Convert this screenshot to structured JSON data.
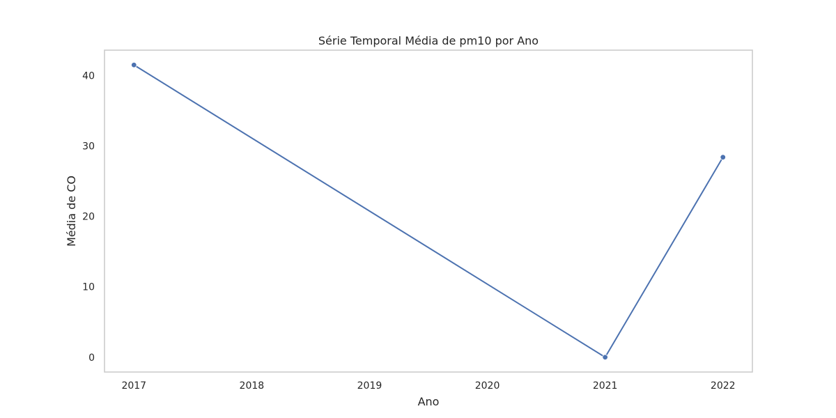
{
  "chart_data": {
    "type": "line",
    "title": "Série Temporal Média de pm10 por Ano",
    "xlabel": "Ano",
    "ylabel": "Média de CO",
    "x": [
      2017,
      2021,
      2022
    ],
    "x_ticks": [
      "2017",
      "2018",
      "2019",
      "2020",
      "2021",
      "2022"
    ],
    "xlim": [
      2016.75,
      2022.25
    ],
    "y_ticks": [
      0,
      10,
      20,
      30,
      40
    ],
    "ylim": [
      -2.1,
      43.6
    ],
    "series": [
      {
        "values": [
          41.5,
          0.0,
          28.4
        ],
        "color": "#4c72b0",
        "marker": "circle"
      }
    ],
    "grid": false,
    "legend": "none"
  }
}
